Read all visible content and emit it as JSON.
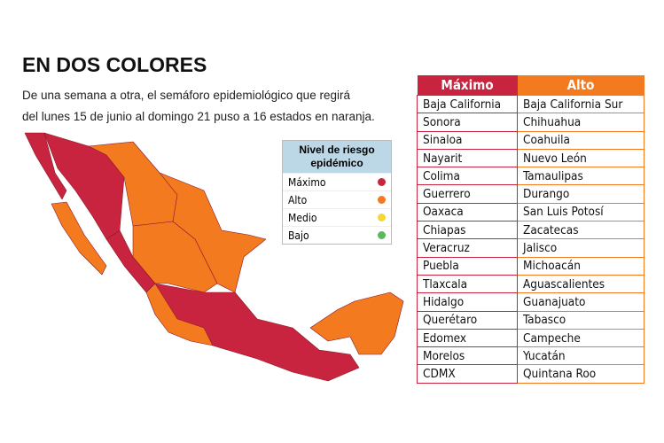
{
  "header": {
    "title": "EN DOS COLORES",
    "subtitle_lines": [
      "De una semana a otra, el semáforo epidemiológico que regirá",
      "del lunes 15 de junio al domingo 21 puso a 16 estados en naranja."
    ]
  },
  "legend": {
    "title": "Nivel de riesgo epidémico",
    "items": [
      {
        "label": "Máximo",
        "color": "#c8233f"
      },
      {
        "label": "Alto",
        "color": "#f47a20"
      },
      {
        "label": "Medio",
        "color": "#f5d63a"
      },
      {
        "label": "Bajo",
        "color": "#5cb85c"
      }
    ]
  },
  "table": {
    "headers": [
      "Máximo",
      "Alto"
    ],
    "rows": [
      [
        "Baja California",
        "Baja California Sur"
      ],
      [
        "Sonora",
        "Chihuahua"
      ],
      [
        "Sinaloa",
        "Coahuila"
      ],
      [
        "Nayarit",
        "Nuevo León"
      ],
      [
        "Colima",
        "Tamaulipas"
      ],
      [
        "Guerrero",
        "Durango"
      ],
      [
        "Oaxaca",
        "San Luis Potosí"
      ],
      [
        "Chiapas",
        "Zacatecas"
      ],
      [
        "Veracruz",
        "Jalisco"
      ],
      [
        "Puebla",
        "Michoacán"
      ],
      [
        "Tlaxcala",
        "Aguascalientes"
      ],
      [
        "Hidalgo",
        "Guanajuato"
      ],
      [
        "Querétaro",
        "Tabasco"
      ],
      [
        "Edomex",
        "Campeche"
      ],
      [
        "Morelos",
        "Yucatán"
      ],
      [
        "CDMX",
        "Quintana Roo"
      ]
    ]
  }
}
